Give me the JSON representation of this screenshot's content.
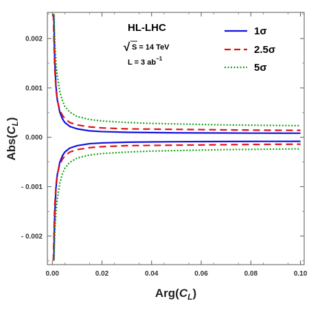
{
  "chart_data": {
    "type": "line",
    "xlabel": {
      "main": "Arg(",
      "sub": "L",
      "var": "C",
      "close": ")"
    },
    "ylabel": {
      "main": "Abs(",
      "sub": "L",
      "var": "C",
      "close": ")"
    },
    "xlim": [
      -0.002,
      0.1015
    ],
    "ylim": [
      -0.00258,
      0.00253
    ],
    "x_ticks": [
      0.0,
      0.02,
      0.04,
      0.06,
      0.08,
      0.1
    ],
    "x_tick_labels": [
      "0.00",
      "0.02",
      "0.04",
      "0.06",
      "0.08",
      "0.10"
    ],
    "y_ticks": [
      -0.002,
      -0.001,
      0.0,
      0.001,
      0.002
    ],
    "y_tick_labels": [
      "- 0.002",
      "- 0.001",
      "0.000",
      "0.001",
      "0.002"
    ],
    "grid": false,
    "legend_position": "top-right",
    "annotation": {
      "title": "HL-LHC",
      "energy_prefix": "S = 14 TeV",
      "energy_sqrt": "√",
      "lumi": "L = 3 ab",
      "lumi_sup": "−1"
    },
    "series": [
      {
        "name": "1σ",
        "color": "#1010e0",
        "dash": "solid",
        "x": [
          0.0006,
          0.0008,
          0.001,
          0.0015,
          0.002,
          0.003,
          0.004,
          0.005,
          0.007,
          0.01,
          0.015,
          0.02,
          0.03,
          0.04,
          0.05,
          0.06,
          0.07,
          0.08,
          0.09,
          0.1
        ],
        "upper": [
          0.0025,
          0.0019,
          0.00152,
          0.00101,
          0.00076,
          0.00051,
          0.00038,
          0.0003,
          0.00022,
          0.00017,
          0.00013,
          0.000115,
          0.0001,
          9.5e-05,
          9e-05,
          8.8e-05,
          8.6e-05,
          8.4e-05,
          8.3e-05,
          8.2e-05
        ],
        "lower": [
          -0.0025,
          -0.0019,
          -0.00152,
          -0.00101,
          -0.00076,
          -0.00051,
          -0.00038,
          -0.0003,
          -0.00022,
          -0.00017,
          -0.00013,
          -0.000115,
          -0.0001,
          -9.5e-05,
          -9e-05,
          -8.8e-05,
          -8.6e-05,
          -8.4e-05,
          -8.3e-05,
          -8.2e-05
        ]
      },
      {
        "name": "2.5σ",
        "color": "#e01010",
        "dash": "long-dash",
        "x": [
          0.0004,
          0.0006,
          0.0008,
          0.001,
          0.0015,
          0.002,
          0.003,
          0.004,
          0.005,
          0.007,
          0.01,
          0.015,
          0.02,
          0.03,
          0.04,
          0.05,
          0.06,
          0.07,
          0.08,
          0.09,
          0.1
        ],
        "upper": [
          0.0025,
          0.00205,
          0.00165,
          0.00135,
          0.00095,
          0.00075,
          0.00055,
          0.00045,
          0.00038,
          0.0003,
          0.00025,
          0.00021,
          0.00019,
          0.00017,
          0.000165,
          0.00016,
          0.000155,
          0.00015,
          0.000145,
          0.000142,
          0.00014
        ],
        "lower": [
          -0.0025,
          -0.00205,
          -0.00165,
          -0.00135,
          -0.00095,
          -0.00075,
          -0.00055,
          -0.00045,
          -0.00038,
          -0.0003,
          -0.00025,
          -0.00021,
          -0.00019,
          -0.00017,
          -0.000165,
          -0.00016,
          -0.000155,
          -0.00015,
          -0.000145,
          -0.000142,
          -0.00014
        ]
      },
      {
        "name": "5σ",
        "color": "#10a010",
        "dash": "dotted",
        "x": [
          0.0006,
          0.0008,
          0.001,
          0.0015,
          0.002,
          0.003,
          0.004,
          0.005,
          0.007,
          0.01,
          0.015,
          0.02,
          0.03,
          0.04,
          0.05,
          0.06,
          0.07,
          0.08,
          0.09,
          0.1
        ],
        "upper": [
          0.0025,
          0.00225,
          0.00195,
          0.0015,
          0.00125,
          0.00093,
          0.00075,
          0.00063,
          0.00051,
          0.00042,
          0.00036,
          0.00033,
          0.0003,
          0.00028,
          0.00027,
          0.00026,
          0.00025,
          0.000245,
          0.00024,
          0.000235
        ],
        "lower": [
          -0.0025,
          -0.00225,
          -0.00195,
          -0.0015,
          -0.00125,
          -0.00093,
          -0.00075,
          -0.00063,
          -0.00051,
          -0.00042,
          -0.00036,
          -0.00033,
          -0.0003,
          -0.00028,
          -0.00027,
          -0.00026,
          -0.00025,
          -0.000245,
          -0.00024,
          -0.000235
        ]
      }
    ]
  }
}
